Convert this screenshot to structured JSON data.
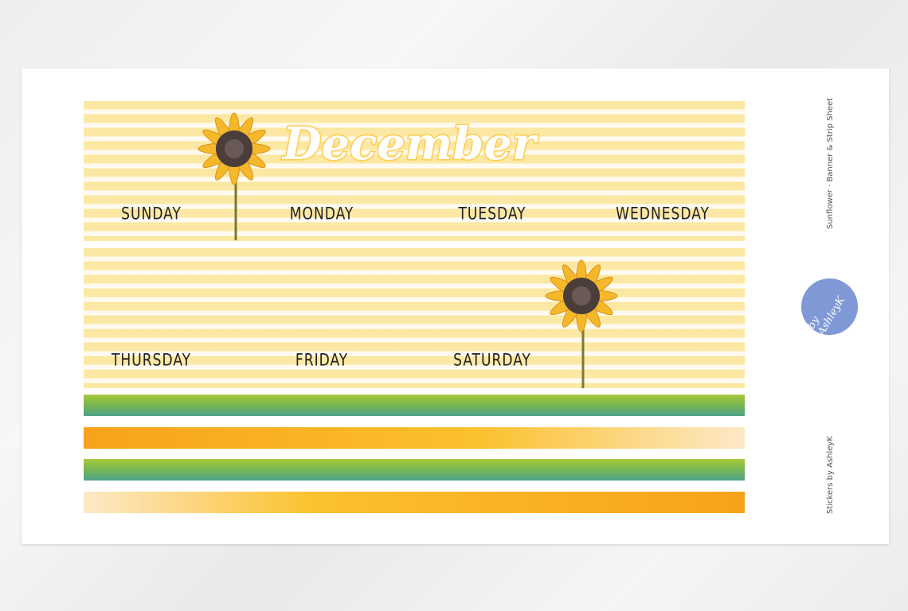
{
  "banner_1": {
    "month": "December",
    "days": [
      "SUNDAY",
      "MONDAY",
      "TUESDAY",
      "WEDNESDAY"
    ]
  },
  "banner_2": {
    "days": [
      "THURSDAY",
      "FRIDAY",
      "SATURDAY"
    ]
  },
  "strips": [
    "green",
    "orange",
    "green",
    "orange"
  ],
  "side": {
    "product": "Sunflower  ·  Banner & Strip Sheet",
    "credit": "Stickers by AshleyK",
    "logo_text": "by AshleyK"
  },
  "colors": {
    "stripe_yellow": "#fbe7a0",
    "title_outline": "#fdc94a",
    "logo_bg": "#7f98d6"
  }
}
